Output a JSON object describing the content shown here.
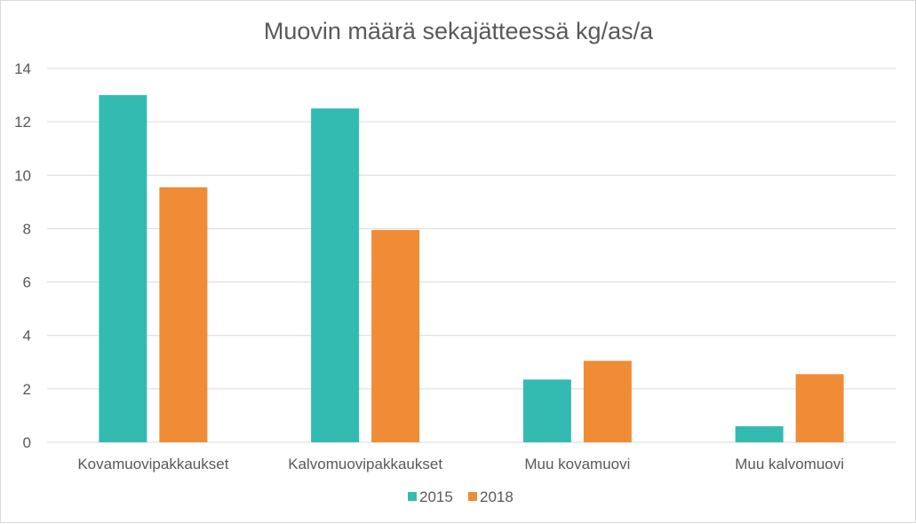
{
  "chart_data": {
    "type": "bar",
    "title": "Muovin määrä sekajätteessä kg/as/a",
    "xlabel": "",
    "ylabel": "",
    "categories": [
      "Kovamuovipakkaukset",
      "Kalvomuovipakkaukset",
      "Muu kovamuovi",
      "Muu kalvomuovi"
    ],
    "series": [
      {
        "name": "2015",
        "color": "#33BBB2",
        "values": [
          13.0,
          12.5,
          2.35,
          0.6
        ]
      },
      {
        "name": "2018",
        "color": "#F08C35",
        "values": [
          9.55,
          7.95,
          3.05,
          2.55
        ]
      }
    ],
    "ylim": [
      0,
      14
    ],
    "yticks": [
      "0",
      "2",
      "4",
      "6",
      "8",
      "10",
      "12",
      "14"
    ],
    "grid": true,
    "legend_position": "bottom"
  }
}
